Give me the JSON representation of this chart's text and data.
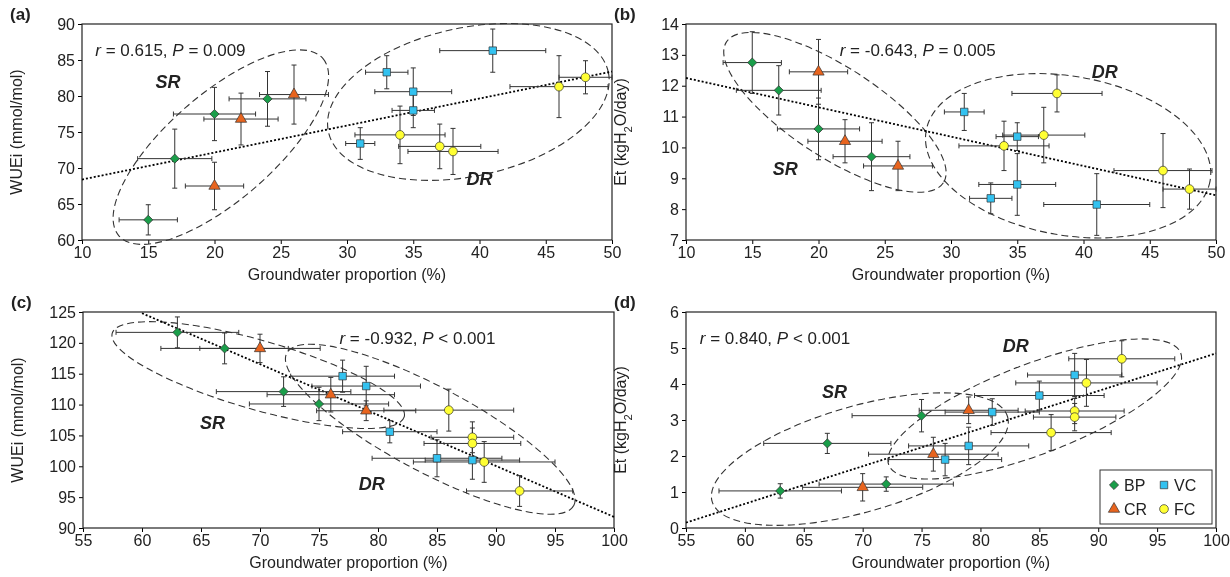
{
  "chart_data": [
    {
      "type": "scatter",
      "title": "(a)",
      "xlabel": "Groundwater proportion (%)",
      "ylabel": "WUEi (mmol/mol)",
      "xlim": [
        10,
        50
      ],
      "xticks": [
        10,
        15,
        20,
        25,
        30,
        35,
        40,
        45,
        50
      ],
      "ylim": [
        60,
        90
      ],
      "yticks": [
        60,
        65,
        70,
        75,
        80,
        85,
        90
      ],
      "legend": false,
      "annotations": [
        "r = 0.615, P = 0.009",
        "SR",
        "DR"
      ],
      "series": [
        {
          "type": "line",
          "color": "#000000",
          "line_style": "dotted",
          "x": [
            10,
            50
          ],
          "values": [
            68.4,
            83.4
          ]
        },
        {
          "color": "#1a9e4a",
          "marker": "diamond",
          "x": [
            15,
            17,
            20,
            24
          ],
          "values": [
            62.8,
            71.3,
            77.5,
            79.6
          ],
          "errors": [
            2.1,
            4.1,
            3.7,
            3.8
          ],
          "xerrors": [
            2.2,
            2.8,
            3.1,
            2.9
          ]
        },
        {
          "color": "#e8641e",
          "marker": "triangle",
          "x": [
            20,
            22,
            26
          ],
          "values": [
            67.5,
            76.8,
            80.2
          ],
          "errors": [
            3.3,
            3.6,
            4.1
          ],
          "xerrors": [
            2.2,
            2.8,
            2.6
          ]
        },
        {
          "color": "#33c2f0",
          "marker": "square",
          "x": [
            31,
            33,
            35,
            35,
            41
          ],
          "values": [
            73.4,
            83.3,
            80.6,
            78,
            86.3
          ],
          "errors": [
            2.2,
            2.3,
            3.3,
            2.4,
            3
          ],
          "xerrors": [
            1.1,
            1.6,
            2.9,
            1.6,
            4
          ]
        },
        {
          "color": "#ffff33",
          "marker": "circle",
          "x": [
            34,
            37,
            38,
            46,
            48
          ],
          "values": [
            74.6,
            73,
            72.3,
            81.3,
            82.6
          ],
          "errors": [
            4,
            3.1,
            3.2,
            4.3,
            2.3
          ],
          "xerrors": [
            3.4,
            3.1,
            3.4,
            3.7,
            2
          ]
        }
      ]
    },
    {
      "type": "scatter",
      "title": "(b)",
      "xlabel": "Groundwater proportion (%)",
      "ylabel": "Et (kgH$_{2}$O/day)",
      "xlim": [
        10,
        50
      ],
      "xticks": [
        10,
        15,
        20,
        25,
        30,
        35,
        40,
        45,
        50
      ],
      "ylim": [
        7,
        14
      ],
      "yticks": [
        7,
        8,
        9,
        10,
        11,
        12,
        13,
        14
      ],
      "legend": false,
      "annotations": [
        "r = -0.643, P = 0.005",
        "SR",
        "DR"
      ],
      "series": [
        {
          "type": "line",
          "color": "#000000",
          "line_style": "dotted",
          "x": [
            10,
            50
          ],
          "values": [
            12.25,
            8.45
          ]
        },
        {
          "color": "#1a9e4a",
          "marker": "diamond",
          "x": [
            15,
            17,
            20,
            24
          ],
          "values": [
            12.75,
            11.85,
            10.6,
            9.7
          ],
          "errors": [
            1,
            0.8,
            1,
            1.1
          ],
          "xerrors": [
            2.2,
            3.2,
            3.1,
            2.9
          ]
        },
        {
          "color": "#e8641e",
          "marker": "triangle",
          "x": [
            20,
            22,
            26
          ],
          "values": [
            12.45,
            10.2,
            9.4
          ],
          "errors": [
            1.05,
            0.7,
            0.8
          ],
          "xerrors": [
            2.2,
            2.8,
            2.6
          ]
        },
        {
          "color": "#33c2f0",
          "marker": "square",
          "x": [
            31,
            33,
            35,
            35,
            41
          ],
          "values": [
            11.15,
            8.35,
            10.35,
            8.8,
            8.15
          ],
          "errors": [
            0.6,
            0.5,
            0.45,
            1,
            1
          ],
          "xerrors": [
            1.5,
            1.6,
            1.6,
            2.9,
            4
          ]
        },
        {
          "color": "#ffff33",
          "marker": "circle",
          "x": [
            34,
            37,
            38,
            46,
            48
          ],
          "values": [
            10.05,
            10.4,
            11.75,
            9.25,
            8.65
          ],
          "errors": [
            0.8,
            0.9,
            0.6,
            1.2,
            0.65
          ],
          "xerrors": [
            3.4,
            3.1,
            3.4,
            3.7,
            2
          ]
        }
      ]
    },
    {
      "type": "scatter",
      "title": "(c)",
      "xlabel": "Groundwater proportion (%)",
      "ylabel": "WUEi (mmol/mol)",
      "xlim": [
        55,
        100
      ],
      "xticks": [
        55,
        60,
        65,
        70,
        75,
        80,
        85,
        90,
        95,
        100
      ],
      "ylim": [
        90,
        125
      ],
      "yticks": [
        90,
        95,
        100,
        105,
        110,
        115,
        120,
        125
      ],
      "legend": false,
      "annotations": [
        "r = -0.932, P < 0.001",
        "SR",
        "DR"
      ],
      "series": [
        {
          "type": "line",
          "color": "#000000",
          "line_style": "dotted",
          "x": [
            60,
            100
          ],
          "values": [
            124.8,
            91.8
          ]
        },
        {
          "color": "#1a9e4a",
          "marker": "diamond",
          "x": [
            63,
            67,
            72,
            75
          ],
          "values": [
            121.7,
            119.1,
            112.1,
            110.1
          ],
          "errors": [
            2.5,
            2.5,
            2.4,
            2.7
          ],
          "xerrors": [
            5.2,
            5.4,
            5.7,
            5.9
          ]
        },
        {
          "color": "#e8641e",
          "marker": "triangle",
          "x": [
            70,
            76,
            79
          ],
          "values": [
            119.1,
            111.6,
            109
          ],
          "errors": [
            2.3,
            2.8,
            1.6
          ],
          "xerrors": [
            5.1,
            5.4,
            4.2
          ]
        },
        {
          "color": "#33c2f0",
          "marker": "square",
          "x": [
            77,
            79,
            81,
            85,
            88
          ],
          "values": [
            114.6,
            113,
            105.6,
            101.3,
            101
          ],
          "errors": [
            2.6,
            3.2,
            1.8,
            3,
            3.1
          ],
          "xerrors": [
            4.4,
            4.6,
            4,
            5.5,
            4
          ]
        },
        {
          "color": "#ffff33",
          "marker": "circle",
          "x": [
            86,
            88,
            88,
            89,
            92
          ],
          "values": [
            109.1,
            104.7,
            103.7,
            100.7,
            96
          ],
          "errors": [
            3.4,
            2.5,
            2.5,
            3.3,
            2.5
          ],
          "xerrors": [
            5.5,
            3.5,
            4.1,
            6,
            4.5
          ]
        }
      ]
    },
    {
      "type": "scatter",
      "title": "(d)",
      "xlabel": "Groundwater proportion (%)",
      "ylabel": "Et (kgH$_{2}$O/day)",
      "xlim": [
        55,
        100
      ],
      "xticks": [
        55,
        60,
        65,
        70,
        75,
        80,
        85,
        90,
        95,
        100
      ],
      "ylim": [
        0,
        6
      ],
      "yticks": [
        0,
        1,
        2,
        3,
        4,
        5,
        6
      ],
      "legend": "bottom right",
      "annotations": [
        "r = 0.840, P < 0.001",
        "SR",
        "DR"
      ],
      "series": [
        {
          "type": "line",
          "color": "#000000",
          "line_style": "dotted",
          "x": [
            55,
            100
          ],
          "values": [
            0.15,
            4.85
          ]
        },
        {
          "name": "BP",
          "color": "#1a9e4a",
          "marker": "diamond",
          "x": [
            63,
            67,
            72,
            75
          ],
          "values": [
            1.03,
            2.35,
            1.22,
            3.12
          ],
          "errors": [
            0.2,
            0.28,
            0.2,
            0.45
          ],
          "xerrors": [
            5.2,
            5.4,
            5.7,
            5.9
          ]
        },
        {
          "name": "CR",
          "color": "#e8641e",
          "marker": "triangle",
          "x": [
            70,
            76,
            79
          ],
          "values": [
            1.13,
            2.05,
            3.27
          ],
          "errors": [
            0.38,
            0.47,
            0.37
          ],
          "xerrors": [
            5.1,
            5.5,
            4.2
          ]
        },
        {
          "name": "VC",
          "color": "#33c2f0",
          "marker": "square",
          "x": [
            77,
            79,
            81,
            85,
            88
          ],
          "values": [
            1.9,
            2.28,
            3.22,
            3.68,
            4.25
          ],
          "errors": [
            0.45,
            0.52,
            0.37,
            0.4,
            0.6
          ],
          "xerrors": [
            4.8,
            5.1,
            4,
            5.5,
            4
          ]
        },
        {
          "name": "FC",
          "color": "#ffff33",
          "marker": "circle",
          "x": [
            86,
            88,
            88,
            89,
            92
          ],
          "values": [
            2.65,
            3.25,
            3.08,
            4.03,
            4.7
          ],
          "errors": [
            0.5,
            0.35,
            0.38,
            0.65,
            0.5
          ],
          "xerrors": [
            5.1,
            4.2,
            3.5,
            6,
            4.5
          ]
        }
      ]
    }
  ]
}
